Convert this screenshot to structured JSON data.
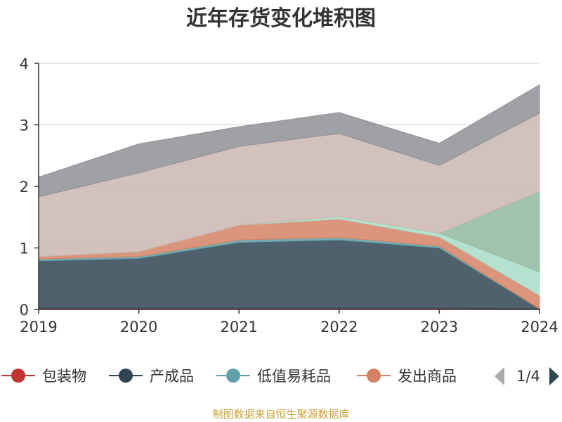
{
  "chart_data": {
    "type": "area",
    "stacked": true,
    "title": "近年存货变化堆积图",
    "ylabel": "",
    "xlabel": "",
    "categories": [
      "2019",
      "2020",
      "2021",
      "2022",
      "2023",
      "2024"
    ],
    "ylim": [
      0,
      4
    ],
    "yticks": [
      "0",
      "1",
      "2",
      "3",
      "4"
    ],
    "grid": true,
    "legend_position": "bottom",
    "series": [
      {
        "name": "包装物",
        "color": "#c23531",
        "values": [
          0.02,
          0.02,
          0.02,
          0.02,
          0.02,
          0.01
        ]
      },
      {
        "name": "产成品",
        "color": "#2f4554",
        "values": [
          0.77,
          0.81,
          1.07,
          1.11,
          0.98,
          0.0
        ]
      },
      {
        "name": "低值易耗品",
        "color": "#61a0a8",
        "values": [
          0.03,
          0.03,
          0.04,
          0.04,
          0.03,
          0.0
        ]
      },
      {
        "name": "发出商品",
        "color": "#d48265",
        "values": [
          0.04,
          0.08,
          0.24,
          0.3,
          0.15,
          0.22
        ]
      },
      {
        "name": "",
        "color": "#a8ddc8",
        "values": [
          0.0,
          0.0,
          0.0,
          0.04,
          0.06,
          0.38
        ]
      },
      {
        "name": "",
        "color": "#91b9a0",
        "values": [
          0.0,
          0.0,
          0.0,
          0.0,
          0.0,
          1.31
        ]
      },
      {
        "name": "",
        "color": "#cbb6b0",
        "values": [
          0.97,
          1.28,
          1.28,
          1.35,
          1.1,
          1.27
        ]
      },
      {
        "name": "",
        "color": "#8e9096",
        "values": [
          0.32,
          0.47,
          0.32,
          0.34,
          0.36,
          0.46
        ]
      }
    ]
  },
  "legend": {
    "items": [
      {
        "label": "包装物",
        "color": "#c23531"
      },
      {
        "label": "产成品",
        "color": "#2f4554"
      },
      {
        "label": "低值易耗品",
        "color": "#61a0a8"
      },
      {
        "label": "发出商品",
        "color": "#d48265"
      }
    ],
    "page_text": "1/4",
    "prev_color": "#aaaaaa",
    "next_color": "#2f4554"
  },
  "footer": {
    "text": "制图数据来自恒生聚源数据库",
    "color": "#c9a13a"
  },
  "colors": {
    "grid": "#cccccc",
    "axis": "#333333",
    "title": "#333333"
  }
}
